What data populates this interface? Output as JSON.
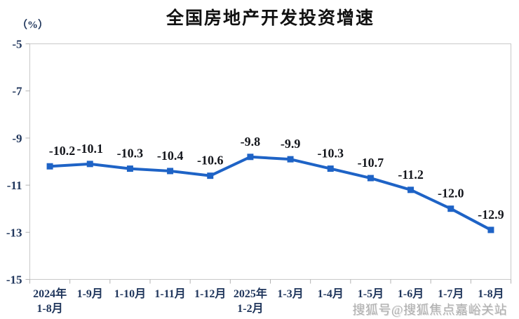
{
  "page": {
    "title": "全国房地产开发投资增速",
    "unit_label": "（%）",
    "watermark": "搜狐号@搜狐焦点嘉峪关站"
  },
  "chart_data": {
    "type": "line",
    "title": "全国房地产开发投资增速",
    "ylabel": "（%）",
    "categories": [
      "2024年\n1-8月",
      "1-9月",
      "1-10月",
      "1-11月",
      "1-12月",
      "2025年\n1-2月",
      "1-3月",
      "1-4月",
      "1-5月",
      "1-6月",
      "1-7月",
      "1-8月"
    ],
    "values": [
      -10.2,
      -10.1,
      -10.3,
      -10.4,
      -10.6,
      -9.8,
      -9.9,
      -10.3,
      -10.7,
      -11.2,
      -12.0,
      -12.9
    ],
    "data_labels": [
      "-10.2",
      "-10.1",
      "-10.3",
      "-10.4",
      "-10.6",
      "-9.8",
      "-9.9",
      "-10.3",
      "-10.7",
      "-11.2",
      "-12.0",
      "-12.9"
    ],
    "ylim": [
      -15,
      -5
    ],
    "yticks": [
      -5,
      -7,
      -9,
      -11,
      -13,
      -15
    ],
    "grid": false,
    "legend": null,
    "marker": "square",
    "colors": {
      "line": "#1E63C6",
      "marker": "#1E63C6",
      "plot_border": "#c9c9c9",
      "tick": "#b3b3b3",
      "axis_label": "#20365c",
      "data_label": "#14161c",
      "title": "#111111",
      "watermark": "#b0b0b0"
    }
  }
}
